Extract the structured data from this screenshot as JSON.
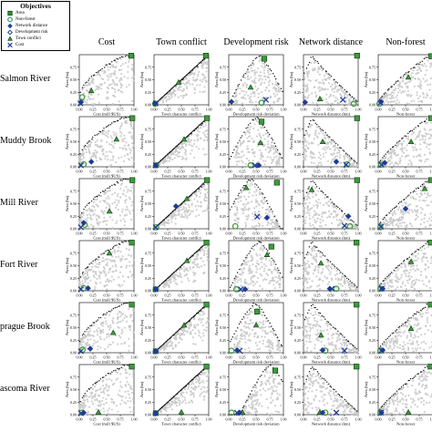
{
  "legend": {
    "title": "Objectives",
    "items": [
      {
        "label": "Area",
        "icon": "square-icon",
        "color": "#2e8b2e"
      },
      {
        "label": "Non-forest",
        "icon": "circle-icon",
        "color": "#3a9a6a"
      },
      {
        "label": "Network distance",
        "icon": "diamond-icon",
        "color": "#2040a0"
      },
      {
        "label": "Development risk",
        "icon": "open-diamond-icon",
        "color": "#2040a0"
      },
      {
        "label": "Town conflict",
        "icon": "triangle-icon",
        "color": "#3c9a3c"
      },
      {
        "label": "Cost",
        "icon": "x-icon",
        "color": "#2040a0"
      }
    ]
  },
  "chart_data": {
    "type": "scatter",
    "columns": [
      "Cost",
      "Town conflict",
      "Development risk",
      "Network distance",
      "Non-forest"
    ],
    "rows": [
      "Salmon River",
      "Muddy Brook",
      "Mill River",
      "Fort River",
      "Sprague Brook",
      "Mascoma River"
    ],
    "row_label_display": [
      "Salmon River",
      "Muddy Brook",
      "Mill River",
      "Fort River",
      "prague Brook",
      "ascoma River"
    ],
    "xlabels": [
      "Cost (mill $US)",
      "Town character conflict",
      "Development risk deviation",
      "Network distance (km)",
      "Non-forest"
    ],
    "ylabel": "Area (ha)",
    "xticks": [
      "0.00",
      "0.25",
      "0.50",
      "0.75",
      "1.00"
    ],
    "yticks": [
      "0.00",
      "0.25",
      "0.50",
      "0.75"
    ],
    "xlim": [
      0,
      1
    ],
    "ylim": [
      0,
      1
    ],
    "colors": {
      "cloud": "#c8c8c8",
      "front": "#111111",
      "green": "#3c9a3c",
      "blue": "#1e3c96"
    },
    "shapes": {
      "Salmon River": [
        {
          "shape": "square",
          "color": "green",
          "x": [
            0.95,
            0.95,
            0.65,
            0.98,
            0.97
          ],
          "y": [
            0.98,
            0.98,
            0.92,
            0.98,
            0.97
          ]
        },
        {
          "shape": "triangle",
          "color": "green",
          "x": [
            0.22,
            0.45,
            0.4,
            0.3,
            0.55
          ],
          "y": [
            0.28,
            0.45,
            0.35,
            0.12,
            0.55
          ]
        },
        {
          "shape": "circle",
          "color": "green",
          "x": [
            0.05,
            0.02,
            0.6,
            0.92,
            0.02
          ],
          "y": [
            0.15,
            0.02,
            0.04,
            0.02,
            0.02
          ]
        },
        {
          "shape": "diamond",
          "color": "blue",
          "x": [
            0.03,
            0.02,
            0.05,
            0.03,
            0.05
          ],
          "y": [
            0.05,
            0.03,
            0.06,
            0.05,
            0.06
          ]
        },
        {
          "shape": "x",
          "color": "blue",
          "x": [
            0.02,
            0.03,
            0.68,
            0.72,
            0.04
          ],
          "y": [
            0.03,
            0.03,
            0.1,
            0.1,
            0.04
          ]
        }
      ],
      "Muddy Brook": [
        {
          "shape": "square",
          "color": "green",
          "x": [
            0.97,
            0.97,
            0.6,
            0.98,
            0.97
          ],
          "y": [
            0.97,
            0.97,
            0.9,
            0.97,
            0.97
          ]
        },
        {
          "shape": "triangle",
          "color": "green",
          "x": [
            0.68,
            0.55,
            0.58,
            0.35,
            0.6
          ],
          "y": [
            0.55,
            0.55,
            0.48,
            0.5,
            0.5
          ]
        },
        {
          "shape": "circle",
          "color": "green",
          "x": [
            0.08,
            0.04,
            0.4,
            0.8,
            0.05
          ],
          "y": [
            0.05,
            0.03,
            0.03,
            0.05,
            0.04
          ]
        },
        {
          "shape": "diamond",
          "color": "blue",
          "x": [
            0.22,
            0.03,
            0.55,
            0.6,
            0.12
          ],
          "y": [
            0.1,
            0.03,
            0.03,
            0.1,
            0.08
          ]
        },
        {
          "shape": "x",
          "color": "blue",
          "x": [
            0.03,
            0.03,
            0.48,
            0.78,
            0.06
          ],
          "y": [
            0.03,
            0.03,
            0.03,
            0.04,
            0.04
          ]
        }
      ],
      "Mill River": [
        {
          "shape": "square",
          "color": "green",
          "x": [
            0.97,
            0.97,
            0.88,
            0.98,
            0.97
          ],
          "y": [
            0.97,
            0.97,
            0.92,
            0.97,
            0.97
          ]
        },
        {
          "shape": "triangle",
          "color": "green",
          "x": [
            0.55,
            0.6,
            0.32,
            0.15,
            0.85
          ],
          "y": [
            0.35,
            0.6,
            0.82,
            0.78,
            0.8
          ]
        },
        {
          "shape": "circle",
          "color": "green",
          "x": [
            0.1,
            0.04,
            0.12,
            0.85,
            0.04
          ],
          "y": [
            0.08,
            0.03,
            0.05,
            0.05,
            0.03
          ]
        },
        {
          "shape": "diamond",
          "color": "blue",
          "x": [
            0.08,
            0.4,
            0.7,
            0.82,
            0.5
          ],
          "y": [
            0.12,
            0.45,
            0.22,
            0.25,
            0.4
          ]
        },
        {
          "shape": "x",
          "color": "blue",
          "x": [
            0.03,
            0.03,
            0.52,
            0.75,
            0.05
          ],
          "y": [
            0.03,
            0.03,
            0.24,
            0.06,
            0.04
          ]
        }
      ],
      "Fort River": [
        {
          "shape": "square",
          "color": "green",
          "x": [
            0.96,
            0.96,
            0.78,
            0.97,
            0.96
          ],
          "y": [
            0.96,
            0.96,
            0.88,
            0.96,
            0.96
          ]
        },
        {
          "shape": "triangle",
          "color": "green",
          "x": [
            0.55,
            0.6,
            0.7,
            0.32,
            0.6
          ],
          "y": [
            0.75,
            0.6,
            0.72,
            0.55,
            0.58
          ]
        },
        {
          "shape": "circle",
          "color": "green",
          "x": [
            0.08,
            0.03,
            0.14,
            0.6,
            0.04
          ],
          "y": [
            0.05,
            0.03,
            0.03,
            0.04,
            0.04
          ]
        },
        {
          "shape": "diamond",
          "color": "blue",
          "x": [
            0.16,
            0.03,
            0.3,
            0.48,
            0.08
          ],
          "y": [
            0.05,
            0.03,
            0.03,
            0.04,
            0.04
          ]
        },
        {
          "shape": "x",
          "color": "blue",
          "x": [
            0.03,
            0.03,
            0.22,
            0.52,
            0.06
          ],
          "y": [
            0.03,
            0.03,
            0.03,
            0.04,
            0.04
          ]
        }
      ],
      "Sprague Brook": [
        {
          "shape": "square",
          "color": "green",
          "x": [
            0.96,
            0.96,
            0.52,
            0.97,
            0.96
          ],
          "y": [
            0.96,
            0.96,
            0.82,
            0.96,
            0.96
          ]
        },
        {
          "shape": "triangle",
          "color": "green",
          "x": [
            0.62,
            0.55,
            0.5,
            0.32,
            0.6
          ],
          "y": [
            0.4,
            0.55,
            0.55,
            0.35,
            0.48
          ]
        },
        {
          "shape": "circle",
          "color": "green",
          "x": [
            0.06,
            0.03,
            0.05,
            0.4,
            0.04
          ],
          "y": [
            0.06,
            0.03,
            0.04,
            0.04,
            0.04
          ]
        },
        {
          "shape": "diamond",
          "color": "blue",
          "x": [
            0.2,
            0.03,
            0.15,
            0.35,
            0.08
          ],
          "y": [
            0.08,
            0.03,
            0.05,
            0.05,
            0.05
          ]
        },
        {
          "shape": "x",
          "color": "blue",
          "x": [
            0.03,
            0.03,
            0.2,
            0.75,
            0.06
          ],
          "y": [
            0.03,
            0.03,
            0.04,
            0.04,
            0.04
          ]
        }
      ],
      "Mascoma River": [
        {
          "shape": "square",
          "color": "green",
          "x": [
            0.96,
            0.96,
            0.85,
            0.97,
            0.96
          ],
          "y": [
            0.96,
            0.96,
            0.88,
            0.96,
            0.96
          ]
        },
        {
          "shape": "triangle",
          "color": "green",
          "x": [
            0.35,
            0.5,
            0.25,
            0.3,
            0.55
          ],
          "y": [
            0.05,
            0.05,
            0.05,
            0.05,
            0.05
          ]
        },
        {
          "shape": "circle",
          "color": "green",
          "x": [
            0.05,
            0.03,
            0.05,
            0.4,
            0.04
          ],
          "y": [
            0.04,
            0.03,
            0.04,
            0.04,
            0.04
          ]
        },
        {
          "shape": "diamond",
          "color": "blue",
          "x": [
            0.08,
            0.03,
            0.2,
            0.35,
            0.06
          ],
          "y": [
            0.04,
            0.03,
            0.04,
            0.04,
            0.04
          ]
        },
        {
          "shape": "x",
          "color": "blue",
          "x": [
            0.03,
            0.03,
            0.15,
            0.6,
            0.05
          ],
          "y": [
            0.03,
            0.03,
            0.04,
            0.04,
            0.04
          ]
        }
      ]
    }
  }
}
